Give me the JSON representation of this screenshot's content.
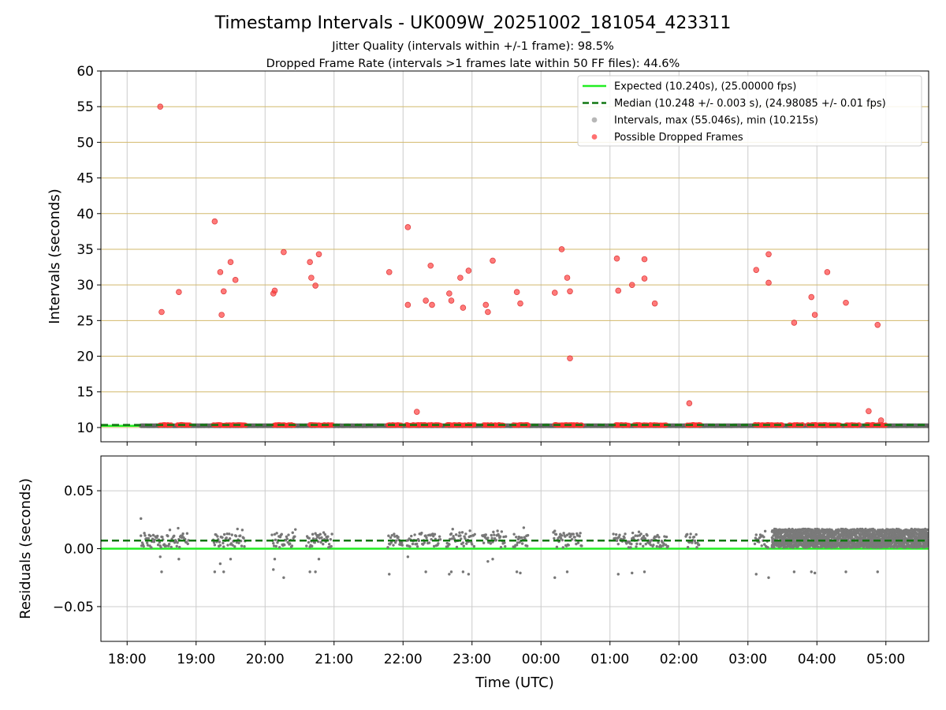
{
  "title": "Timestamp Intervals - UK009W_20251002_181054_423311",
  "subtitle1": "Jitter Quality (intervals within +/-1 frame): 98.5%",
  "subtitle2": "Dropped Frame Rate (intervals >1 frames late within 50 FF files): 44.6%",
  "colors": {
    "expected": "#22ee22",
    "median": "#117711",
    "intervals": "#888888",
    "dropped": "#ff3333",
    "hgrid_top": "#d2b96c",
    "grid": "#cccccc"
  },
  "chart_data": [
    {
      "type": "scatter",
      "name": "intervals",
      "xlabel": "",
      "ylabel": "Intervals (seconds)",
      "xlim_hours": [
        17.62,
        29.62
      ],
      "ylim": [
        8,
        60
      ],
      "yticks": [
        "10",
        "15",
        "20",
        "25",
        "30",
        "35",
        "40",
        "45",
        "50",
        "55",
        "60"
      ],
      "yticks_values": [
        10,
        15,
        20,
        25,
        30,
        35,
        40,
        45,
        50,
        55,
        60
      ],
      "expected_value": 10.24,
      "median_value": 10.248,
      "legend": {
        "placement": "top-right",
        "expected": "Expected (10.240s), (25.00000 fps)",
        "median": "Median (10.248 +/- 0.003 s), (24.98085 +/- 0.01 fps)",
        "intervals": "Intervals, max (55.046s), min (10.215s)",
        "dropped": "Possible Dropped Frames"
      },
      "interval_segments_hours": [
        [
          18.2,
          29.62
        ]
      ],
      "dropped_segments_hours": [
        [
          18.47,
          18.65
        ],
        [
          18.73,
          18.92
        ],
        [
          19.25,
          19.72
        ],
        [
          20.13,
          20.43
        ],
        [
          20.65,
          20.98
        ],
        [
          21.78,
          21.98
        ],
        [
          22.05,
          22.55
        ],
        [
          22.63,
          23.05
        ],
        [
          23.17,
          23.47
        ],
        [
          23.6,
          23.82
        ],
        [
          24.2,
          24.6
        ],
        [
          25.08,
          25.28
        ],
        [
          25.35,
          25.55
        ],
        [
          25.55,
          25.82
        ],
        [
          26.12,
          26.32
        ],
        [
          27.1,
          27.5
        ],
        [
          27.6,
          27.8
        ],
        [
          27.87,
          28.35
        ],
        [
          28.42,
          28.62
        ],
        [
          28.72,
          29.0
        ]
      ],
      "dropped_points": [
        [
          18.48,
          55.0
        ],
        [
          18.5,
          26.2
        ],
        [
          18.75,
          29.0
        ],
        [
          19.27,
          38.9
        ],
        [
          19.35,
          31.8
        ],
        [
          19.37,
          25.8
        ],
        [
          19.4,
          29.1
        ],
        [
          19.5,
          33.2
        ],
        [
          19.57,
          30.7
        ],
        [
          20.12,
          28.8
        ],
        [
          20.14,
          29.2
        ],
        [
          20.27,
          34.6
        ],
        [
          20.65,
          33.2
        ],
        [
          20.67,
          31.0
        ],
        [
          20.73,
          29.9
        ],
        [
          20.78,
          34.3
        ],
        [
          21.8,
          31.8
        ],
        [
          22.07,
          38.1
        ],
        [
          22.07,
          27.2
        ],
        [
          22.2,
          12.2
        ],
        [
          22.33,
          27.8
        ],
        [
          22.4,
          32.7
        ],
        [
          22.42,
          27.2
        ],
        [
          22.67,
          28.8
        ],
        [
          22.7,
          27.8
        ],
        [
          22.83,
          31.0
        ],
        [
          22.87,
          26.8
        ],
        [
          22.95,
          32.0
        ],
        [
          23.2,
          27.2
        ],
        [
          23.23,
          26.2
        ],
        [
          23.3,
          33.4
        ],
        [
          23.65,
          29.0
        ],
        [
          23.7,
          27.4
        ],
        [
          24.2,
          28.9
        ],
        [
          24.3,
          35.0
        ],
        [
          24.38,
          31.0
        ],
        [
          24.42,
          29.1
        ],
        [
          24.42,
          19.7
        ],
        [
          25.1,
          33.7
        ],
        [
          25.12,
          29.2
        ],
        [
          25.32,
          30.0
        ],
        [
          25.5,
          33.6
        ],
        [
          25.5,
          30.9
        ],
        [
          25.65,
          27.4
        ],
        [
          26.15,
          13.4
        ],
        [
          27.12,
          32.1
        ],
        [
          27.3,
          34.3
        ],
        [
          27.3,
          30.3
        ],
        [
          27.67,
          24.7
        ],
        [
          27.92,
          28.3
        ],
        [
          27.97,
          25.8
        ],
        [
          28.15,
          31.8
        ],
        [
          28.42,
          27.5
        ],
        [
          28.75,
          12.3
        ],
        [
          28.88,
          24.4
        ],
        [
          28.93,
          11.0
        ]
      ]
    },
    {
      "type": "scatter",
      "name": "residuals",
      "xlabel": "Time (UTC)",
      "ylabel": "Residuals (seconds)",
      "xlim_hours": [
        17.62,
        29.62
      ],
      "ylim": [
        -0.08,
        0.08
      ],
      "yticks": [
        "0.05",
        "0.00",
        "−0.05"
      ],
      "yticks_values": [
        0.05,
        0.0,
        -0.05
      ],
      "xticks": [
        "18:00",
        "19:00",
        "20:00",
        "21:00",
        "22:00",
        "23:00",
        "00:00",
        "01:00",
        "02:00",
        "03:00",
        "04:00",
        "05:00"
      ],
      "xticks_hours": [
        18,
        19,
        20,
        21,
        22,
        23,
        24,
        25,
        26,
        27,
        28,
        29
      ],
      "expected_value": 0.0,
      "median_value": 0.007,
      "cluster_segments_hours": [
        [
          18.2,
          18.9
        ],
        [
          19.25,
          19.72
        ],
        [
          20.1,
          20.45
        ],
        [
          20.6,
          20.98
        ],
        [
          21.78,
          22.0
        ],
        [
          22.05,
          22.55
        ],
        [
          22.63,
          23.05
        ],
        [
          23.15,
          23.5
        ],
        [
          23.6,
          23.82
        ],
        [
          24.18,
          24.6
        ],
        [
          25.05,
          25.55
        ],
        [
          25.55,
          25.85
        ],
        [
          26.1,
          26.3
        ],
        [
          27.1,
          27.3
        ]
      ],
      "dense_segment_hours": [
        27.35,
        29.62
      ],
      "outlier_points": [
        [
          18.2,
          0.026
        ],
        [
          18.5,
          -0.02
        ],
        [
          18.48,
          -0.007
        ],
        [
          18.75,
          -0.009
        ],
        [
          19.27,
          -0.02
        ],
        [
          19.35,
          -0.013
        ],
        [
          19.4,
          -0.02
        ],
        [
          19.5,
          -0.009
        ],
        [
          20.12,
          -0.018
        ],
        [
          20.14,
          -0.009
        ],
        [
          20.27,
          -0.025
        ],
        [
          20.65,
          -0.02
        ],
        [
          20.73,
          -0.02
        ],
        [
          20.78,
          -0.009
        ],
        [
          21.8,
          -0.022
        ],
        [
          22.07,
          -0.007
        ],
        [
          22.33,
          -0.02
        ],
        [
          22.67,
          -0.022
        ],
        [
          22.7,
          -0.02
        ],
        [
          22.87,
          -0.02
        ],
        [
          22.95,
          -0.022
        ],
        [
          23.23,
          -0.011
        ],
        [
          23.3,
          -0.009
        ],
        [
          23.65,
          -0.02
        ],
        [
          23.7,
          -0.021
        ],
        [
          24.2,
          -0.025
        ],
        [
          24.38,
          -0.02
        ],
        [
          25.12,
          -0.022
        ],
        [
          25.32,
          -0.021
        ],
        [
          25.5,
          -0.02
        ],
        [
          27.12,
          -0.022
        ],
        [
          27.3,
          -0.025
        ],
        [
          27.67,
          -0.02
        ],
        [
          27.92,
          -0.02
        ],
        [
          27.97,
          -0.021
        ],
        [
          28.42,
          -0.02
        ],
        [
          28.88,
          -0.02
        ]
      ]
    }
  ]
}
